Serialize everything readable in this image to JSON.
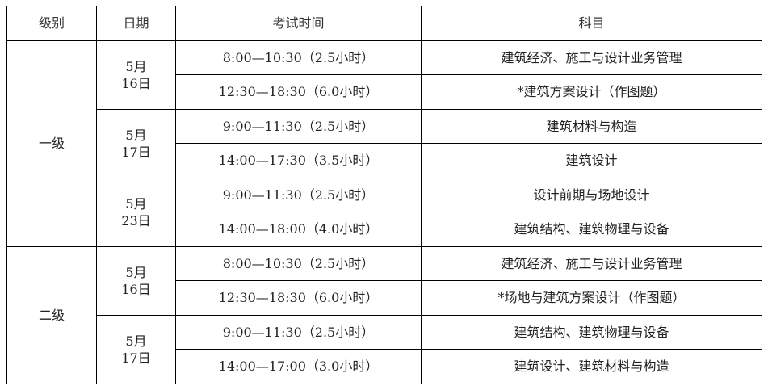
{
  "headers": [
    "级别",
    "日期",
    "考试时间",
    "科目"
  ],
  "groups": [
    {
      "level": "一级",
      "days": [
        {
          "month": "5月",
          "day": "16日",
          "sessions": [
            {
              "time": "8:00—10:30（2.5小时）",
              "subject": "建筑经济、施工与设计业务管理"
            },
            {
              "time": "12:30—18:30（6.0小时）",
              "subject": "*建筑方案设计（作图题）"
            }
          ]
        },
        {
          "month": "5月",
          "day": "17日",
          "sessions": [
            {
              "time": "9:00—11:30（2.5小时）",
              "subject": "建筑材料与构造"
            },
            {
              "time": "14:00—17:30（3.5小时）",
              "subject": "建筑设计"
            }
          ]
        },
        {
          "month": "5月",
          "day": "23日",
          "sessions": [
            {
              "time": "9:00—11:30（2.5小时）",
              "subject": "设计前期与场地设计"
            },
            {
              "time": "14:00—18:00（4.0小时）",
              "subject": "建筑结构、建筑物理与设备"
            }
          ]
        }
      ]
    },
    {
      "level": "二级",
      "days": [
        {
          "month": "5月",
          "day": "16日",
          "sessions": [
            {
              "time": "8:00—10:30（2.5小时）",
              "subject": "建筑经济、施工与设计业务管理"
            },
            {
              "time": "12:30—18:30（6.0小时）",
              "subject": "*场地与建筑方案设计（作图题）"
            }
          ]
        },
        {
          "month": "5月",
          "day": "17日",
          "sessions": [
            {
              "time": "9:00—11:30（2.5小时）",
              "subject": "建筑结构、建筑物理与设备"
            },
            {
              "time": "14:00—17:00（3.0小时）",
              "subject": "建筑设计、建筑材料与构造"
            }
          ]
        }
      ]
    }
  ]
}
